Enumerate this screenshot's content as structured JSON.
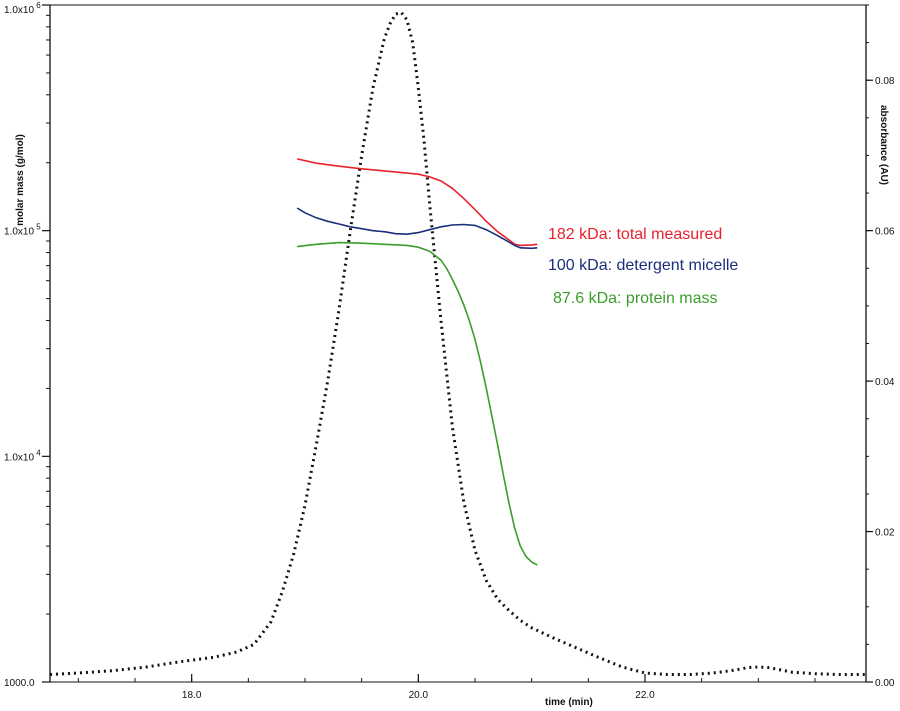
{
  "chart_data": {
    "type": "line",
    "title": "",
    "xlabel": "time (min)",
    "ylabel_left": "molar mass (g/mol)",
    "ylabel_right": "absorbance (AU)",
    "xlim": [
      16.75,
      23.95
    ],
    "ylim_left": [
      1000,
      1000000
    ],
    "ylim_right": [
      0,
      0.09
    ],
    "left_axis_scale": "log",
    "grid": false,
    "x_ticks": [
      {
        "value": 18.0,
        "label": "18.0"
      },
      {
        "value": 20.0,
        "label": "20.0"
      },
      {
        "value": 22.0,
        "label": "22.0"
      }
    ],
    "y_left_ticks": [
      {
        "value": 1000,
        "label": "1000.0"
      },
      {
        "value": 10000,
        "label": "1.0x10",
        "exp": "4"
      },
      {
        "value": 100000,
        "label": "1.0x10",
        "exp": "5"
      },
      {
        "value": 1000000,
        "label": "1.0x10",
        "exp": "6"
      }
    ],
    "y_right_ticks": [
      {
        "value": 0.0,
        "label": "0.00"
      },
      {
        "value": 0.02,
        "label": "0.02"
      },
      {
        "value": 0.04,
        "label": "0.04"
      },
      {
        "value": 0.06,
        "label": "0.06"
      },
      {
        "value": 0.08,
        "label": "0.08"
      }
    ],
    "series": [
      {
        "name": "",
        "axis": "right",
        "style": "dotted",
        "color": "#111111",
        "x": [
          16.75,
          17.0,
          17.3,
          17.6,
          17.9,
          18.2,
          18.4,
          18.55,
          18.7,
          18.8,
          18.9,
          19.0,
          19.1,
          19.2,
          19.3,
          19.4,
          19.5,
          19.6,
          19.7,
          19.75,
          19.8,
          19.85,
          19.9,
          19.95,
          20.0,
          20.05,
          20.1,
          20.2,
          20.3,
          20.4,
          20.5,
          20.6,
          20.7,
          20.8,
          20.9,
          21.0,
          21.2,
          21.4,
          21.6,
          21.8,
          22.0,
          22.2,
          22.4,
          22.6,
          22.8,
          22.9,
          23.0,
          23.1,
          23.2,
          23.3,
          23.5,
          23.7,
          23.95
        ],
        "y": [
          0.001,
          0.0012,
          0.0015,
          0.002,
          0.0027,
          0.0033,
          0.004,
          0.005,
          0.008,
          0.012,
          0.017,
          0.0235,
          0.0315,
          0.04,
          0.0495,
          0.06,
          0.07,
          0.079,
          0.0855,
          0.0875,
          0.0888,
          0.089,
          0.088,
          0.085,
          0.079,
          0.072,
          0.0635,
          0.048,
          0.034,
          0.024,
          0.0175,
          0.0135,
          0.011,
          0.0095,
          0.0082,
          0.0072,
          0.0058,
          0.0045,
          0.0032,
          0.002,
          0.0012,
          0.001,
          0.001,
          0.0012,
          0.0016,
          0.0019,
          0.002,
          0.0019,
          0.0016,
          0.0013,
          0.0011,
          0.001,
          0.001
        ]
      },
      {
        "name": "182 kDa: total measured",
        "axis": "left",
        "color": "#e8222d",
        "x": [
          18.93,
          19.1,
          19.3,
          19.5,
          19.7,
          19.9,
          20.0,
          20.1,
          20.2,
          20.3,
          20.4,
          20.5,
          20.6,
          20.7,
          20.8,
          20.85,
          20.9,
          21.0,
          21.05
        ],
        "y": [
          208000,
          199000,
          193000,
          188000,
          184000,
          180000,
          178000,
          173000,
          166000,
          154000,
          139000,
          124000,
          110000,
          99000,
          91000,
          87000,
          86000,
          86500,
          87000
        ]
      },
      {
        "name": "100 kDa: detergent micelle",
        "axis": "left",
        "color": "#1a2e7c",
        "x": [
          18.93,
          19.0,
          19.1,
          19.2,
          19.3,
          19.4,
          19.5,
          19.6,
          19.7,
          19.8,
          19.9,
          20.0,
          20.1,
          20.2,
          20.3,
          20.4,
          20.5,
          20.6,
          20.7,
          20.8,
          20.85,
          20.9,
          21.0,
          21.05
        ],
        "y": [
          126000,
          120000,
          114000,
          110000,
          107000,
          104000,
          102000,
          100000,
          99000,
          97000,
          96500,
          98000,
          101000,
          104000,
          106000,
          106500,
          105500,
          101000,
          95000,
          89000,
          86000,
          84000,
          83500,
          84000
        ]
      },
      {
        "name": "87.6 kDa: protein mass",
        "axis": "left",
        "color": "#3a9e2a",
        "x": [
          18.93,
          19.1,
          19.3,
          19.5,
          19.7,
          19.9,
          20.0,
          20.1,
          20.2,
          20.25,
          20.3,
          20.35,
          20.4,
          20.45,
          20.5,
          20.55,
          20.6,
          20.65,
          20.7,
          20.75,
          20.8,
          20.85,
          20.9,
          20.95,
          21.0,
          21.05
        ],
        "y": [
          85000,
          87000,
          88500,
          88000,
          87000,
          86000,
          84500,
          81000,
          74000,
          68000,
          61000,
          54000,
          47000,
          40000,
          33000,
          26000,
          20000,
          15000,
          11200,
          8300,
          6200,
          4800,
          4000,
          3600,
          3400,
          3300
        ]
      }
    ],
    "annotations": [
      {
        "text": "182 kDa: total measured",
        "color": "#e8222d"
      },
      {
        "text": "100 kDa: detergent micelle",
        "color": "#1a2e7c"
      },
      {
        "text": "87.6 kDa: protein mass",
        "color": "#3a9e2a"
      }
    ]
  }
}
